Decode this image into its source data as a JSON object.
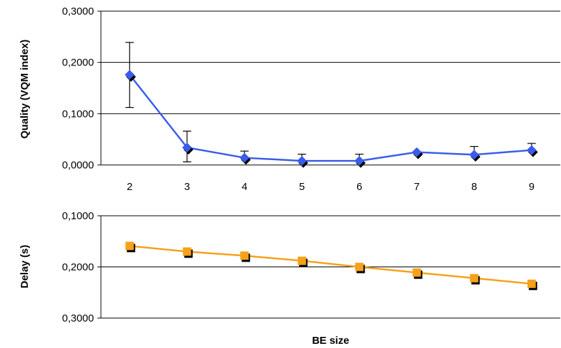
{
  "chart_data": {
    "type": "line",
    "xlabel": "BE size",
    "categories": [
      "2",
      "3",
      "4",
      "5",
      "6",
      "7",
      "8",
      "9"
    ],
    "panels": [
      {
        "id": "quality",
        "ylabel": "Quality  (VQM index)",
        "ylim": [
          0,
          0.3
        ],
        "y_ticks": [
          "0,3000",
          "0,2000",
          "0,1000",
          "0,0000"
        ],
        "y_tick_values": [
          0.3,
          0.2,
          0.1,
          0.0
        ],
        "grid": true,
        "series": [
          {
            "color": "#3b5bea",
            "marker": "diamond",
            "values": [
              0.176,
              0.034,
              0.014,
              0.008,
              0.008,
              0.025,
              0.02,
              0.029
            ],
            "error_upper": [
              0.063,
              0.032,
              0.013,
              0.013,
              0.013,
              0.0,
              0.016,
              0.013
            ],
            "error_lower": [
              0.064,
              0.028,
              0.0,
              0.0,
              0.0,
              0.0,
              0.0,
              0.0
            ]
          }
        ]
      },
      {
        "id": "delay",
        "ylabel": "Delay  (s)",
        "ylim": [
          0.1,
          0.3
        ],
        "y_inverted": true,
        "y_ticks": [
          "0,1000",
          "0,2000",
          "0,3000"
        ],
        "y_tick_values": [
          0.1,
          0.2,
          0.3
        ],
        "grid": true,
        "series": [
          {
            "color": "#f5a11a",
            "marker": "square",
            "values": [
              0.159,
              0.17,
              0.178,
              0.188,
              0.2,
              0.211,
              0.222,
              0.233
            ]
          }
        ]
      }
    ]
  }
}
